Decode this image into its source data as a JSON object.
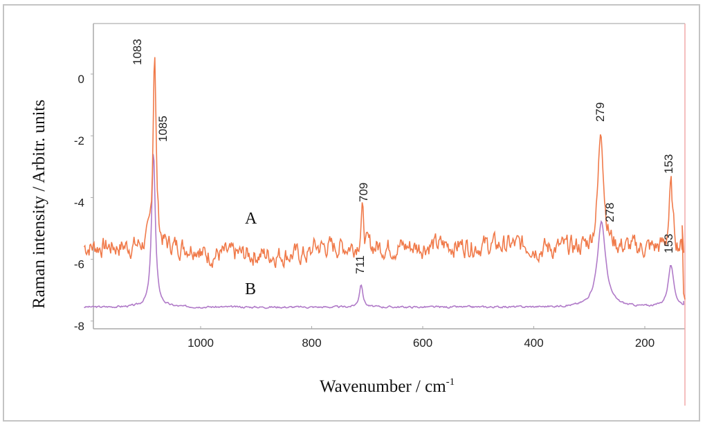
{
  "chart_data": {
    "type": "line",
    "title": "",
    "xlabel": "Wavenumber / cm-1",
    "xlabel_main": "Wavenumber / cm",
    "xlabel_sup": "-1",
    "ylabel": "Raman intensity / Arbitr. units",
    "xlim": [
      1210,
      125
    ],
    "ylim": [
      -8.25,
      1.6
    ],
    "x_reversed": true,
    "grid": false,
    "x_ticks": [
      1000,
      800,
      600,
      400,
      200
    ],
    "x_tick_labels": [
      "1000",
      "800",
      "600",
      "400",
      "200"
    ],
    "y_ticks": [
      0,
      -2,
      -4,
      -6,
      -8
    ],
    "y_tick_labels": [
      "0",
      "-2",
      "-4",
      "-6",
      "-8"
    ],
    "series": [
      {
        "name": "A",
        "color": "#f07a4a",
        "baseline": -5.7,
        "peaks": [
          {
            "x": 1083,
            "y": 0.8,
            "label": "1083"
          },
          {
            "x": 709,
            "y": -4.5,
            "label": "709"
          },
          {
            "x": 279,
            "y": -1.8,
            "label": "279"
          },
          {
            "x": 153,
            "y": -3.7,
            "label": "153"
          }
        ]
      },
      {
        "name": "B",
        "color": "#b07ac8",
        "baseline": -7.55,
        "peaks": [
          {
            "x": 1085,
            "y": -2.5,
            "label": "1085"
          },
          {
            "x": 711,
            "y": -6.8,
            "label": "711"
          },
          {
            "x": 278,
            "y": -4.8,
            "label": "278"
          },
          {
            "x": 153,
            "y": -6.2,
            "label": "153"
          }
        ]
      }
    ],
    "annotations": [
      "1083",
      "1085",
      "709",
      "711",
      "279",
      "278",
      "153",
      "153",
      "A",
      "B"
    ]
  },
  "labels": {
    "series_a": "A",
    "series_b": "B",
    "peak_a_1083": "1083",
    "peak_b_1085": "1085",
    "peak_a_709": "709",
    "peak_b_711": "711",
    "peak_a_279": "279",
    "peak_b_278": "278",
    "peak_a_153": "153",
    "peak_b_153": "153"
  }
}
